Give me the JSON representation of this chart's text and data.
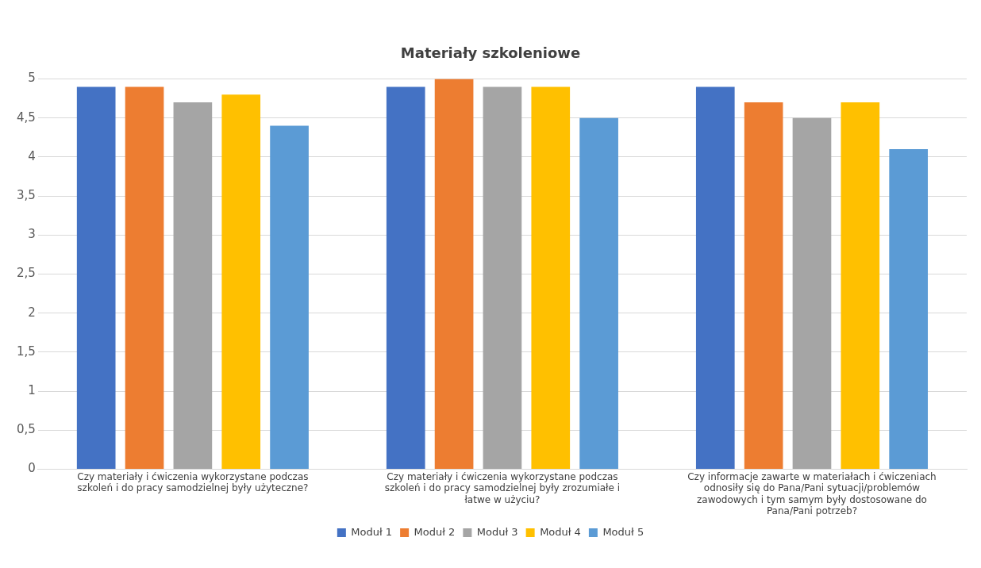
{
  "chart_data": {
    "type": "bar",
    "title": "Materiały szkoleniowe",
    "categories": [
      "Czy materiały i ćwiczenia wykorzystane podczas szkoleń i do pracy samodzielnej były użyteczne?",
      "Czy materiały i ćwiczenia wykorzystane podczas szkoleń i do pracy samodzielnej były zrozumiałe i łatwe w użyciu?",
      "Czy informacje zawarte w materiałach i ćwiczeniach odnosiły się do Pana/Pani sytuacji/problemów zawodowych i tym samym były dostosowane do Pana/Pani potrzeb?"
    ],
    "series": [
      {
        "name": "Moduł 1",
        "color": "#4472c4",
        "values": [
          4.9,
          4.9,
          4.9
        ]
      },
      {
        "name": "Moduł 2",
        "color": "#ed7d31",
        "values": [
          4.9,
          5,
          4.7
        ]
      },
      {
        "name": "Moduł 3",
        "color": "#a5a5a5",
        "values": [
          4.7,
          4.9,
          4.5
        ]
      },
      {
        "name": "Moduł 4",
        "color": "#ffc000",
        "values": [
          4.8,
          4.9,
          4.7
        ]
      },
      {
        "name": "Moduł 5",
        "color": "#5b9bd5",
        "values": [
          4.4,
          4.5,
          4.1
        ]
      }
    ],
    "ylim": [
      0,
      5
    ],
    "yticks": [
      0,
      {
        "value": 0.5,
        "label": "0,5"
      },
      1,
      {
        "value": 1.5,
        "label": "1,5"
      },
      2,
      {
        "value": 2.5,
        "label": "2,5"
      },
      3,
      {
        "value": 3.5,
        "label": "3,5"
      },
      4,
      {
        "value": 4.5,
        "label": "4,5"
      },
      5
    ],
    "grid": "y",
    "legend": "bottom"
  }
}
